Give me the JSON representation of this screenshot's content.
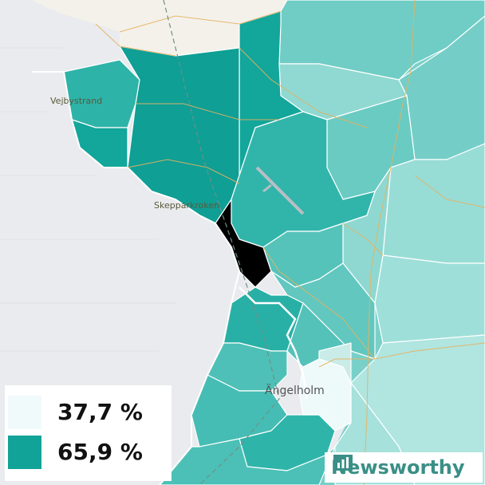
{
  "map": {
    "places": {
      "vejbystrand": "Vejbystrand",
      "skepparkroken": "Skepparkroken",
      "angelholm": "Ängelholm"
    }
  },
  "legend": {
    "min": {
      "label": "37,7 %",
      "color": "#f0fafa"
    },
    "max": {
      "label": "65,9 %",
      "color": "#11a298"
    }
  },
  "brand": {
    "name": "Newsworthy",
    "color": "#3a8f86"
  },
  "colors": {
    "sea": "#e9ebee",
    "land_outside": "#f4f1eb",
    "road": "#e6b25e",
    "border": "#ffffff"
  }
}
